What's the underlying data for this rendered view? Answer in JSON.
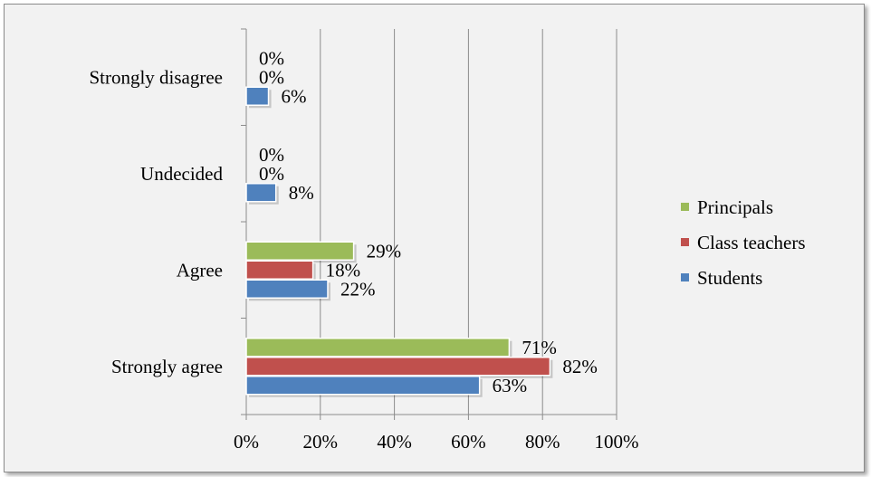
{
  "chart_data": {
    "type": "bar",
    "orientation": "horizontal",
    "categories": [
      "Strongly disagree",
      "Undecided",
      "Agree",
      "Strongly agree"
    ],
    "series": [
      {
        "name": "Principals",
        "color": "#9bbb59",
        "values": [
          0,
          0,
          29,
          71
        ],
        "labels": [
          "0%",
          "0%",
          "29%",
          "71%"
        ]
      },
      {
        "name": "Class teachers",
        "color": "#c0504d",
        "values": [
          0,
          0,
          18,
          82
        ],
        "labels": [
          "0%",
          "0%",
          "18%",
          "82%"
        ]
      },
      {
        "name": "Students",
        "color": "#4f81bd",
        "values": [
          6,
          8,
          22,
          63
        ],
        "labels": [
          "6%",
          "8%",
          "22%",
          "63%"
        ]
      }
    ],
    "xlim": [
      0,
      100
    ],
    "xticks": [
      0,
      20,
      40,
      60,
      80,
      100
    ],
    "xtick_labels": [
      "0%",
      "20%",
      "40%",
      "60%",
      "80%",
      "100%"
    ],
    "grid": "vertical",
    "legend_position": "right"
  }
}
